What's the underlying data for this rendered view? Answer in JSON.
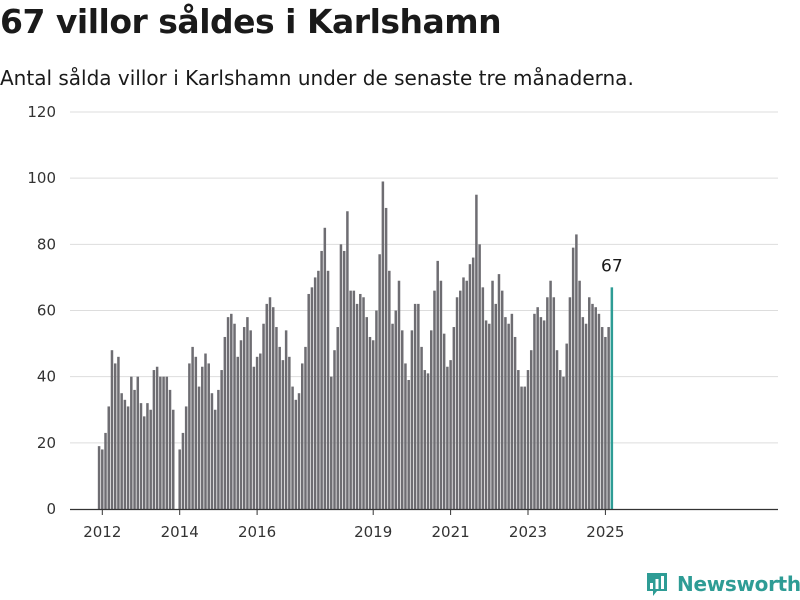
{
  "title": "67 villor såldes i Karlshamn",
  "subtitle": "Antal sålda villor i Karlshamn under de senaste tre månaderna.",
  "brand": {
    "name": "Newsworthy",
    "color": "#2e9c95",
    "icon": "newsworthy-logo-icon"
  },
  "chart_data": {
    "type": "bar",
    "title": "",
    "xlabel": "",
    "ylabel": "",
    "ylim": [
      0,
      120
    ],
    "yticks": [
      0,
      20,
      40,
      60,
      80,
      100,
      120
    ],
    "xticks": [
      "2012",
      "2014",
      "2016",
      "2019",
      "2021",
      "2023",
      "2025"
    ],
    "grid": true,
    "bar_color": "#6e6d72",
    "highlight_color": "#2e9c95",
    "x_start": "2011-12",
    "x_end": "2025-04",
    "values": [
      19,
      18,
      23,
      31,
      48,
      44,
      46,
      35,
      33,
      31,
      40,
      36,
      40,
      32,
      28,
      32,
      30,
      42,
      43,
      40,
      40,
      40,
      36,
      30,
      null,
      18,
      23,
      31,
      44,
      49,
      46,
      37,
      43,
      47,
      44,
      35,
      30,
      36,
      42,
      52,
      58,
      59,
      56,
      46,
      51,
      55,
      58,
      54,
      43,
      46,
      47,
      56,
      62,
      64,
      61,
      55,
      49,
      45,
      54,
      46,
      37,
      33,
      35,
      44,
      49,
      65,
      67,
      70,
      72,
      78,
      85,
      72,
      40,
      48,
      55,
      80,
      78,
      90,
      66,
      66,
      62,
      65,
      64,
      58,
      52,
      51,
      60,
      77,
      99,
      91,
      72,
      56,
      60,
      69,
      54,
      44,
      39,
      54,
      62,
      62,
      49,
      42,
      41,
      54,
      66,
      75,
      69,
      53,
      43,
      45,
      55,
      64,
      66,
      70,
      69,
      74,
      76,
      95,
      80,
      67,
      57,
      56,
      69,
      62,
      71,
      66,
      58,
      56,
      59,
      52,
      42,
      37,
      37,
      42,
      48,
      59,
      61,
      58,
      57,
      64,
      69,
      64,
      48,
      42,
      40,
      50,
      64,
      79,
      83,
      69,
      58,
      56,
      64,
      62,
      61,
      59,
      55,
      52,
      55,
      67
    ],
    "highlight_last": true,
    "last_value_label": "67"
  }
}
